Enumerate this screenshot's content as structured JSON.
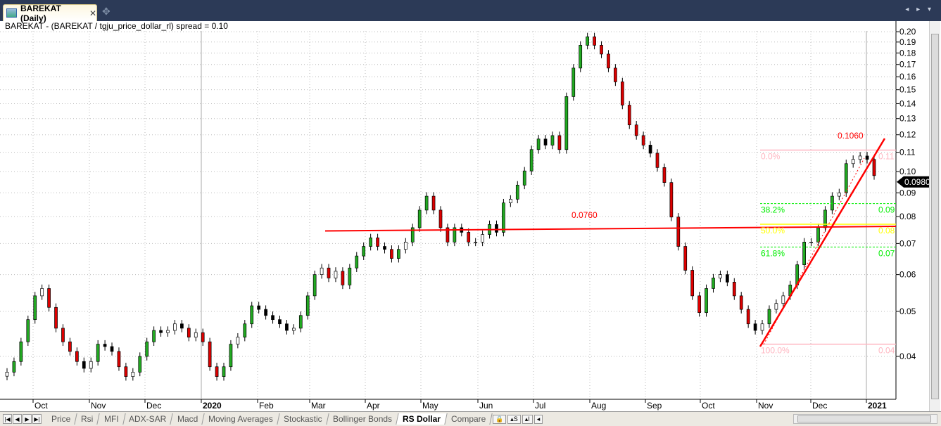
{
  "window": {
    "tab_title": "BAREKAT (Daily)",
    "close_icon": "close-icon",
    "new_tab_icon": "plus-icon"
  },
  "chart_subtitle": "BAREKAT - (BAREKAT / tgju_price_dollar_rl) spread = 0.10",
  "bottom_tabs": [
    "Price",
    "Rsi",
    "MFI",
    "ADX-SAR",
    "Macd",
    "Moving Averages",
    "Stockastic",
    "Bollinger Bonds",
    "RS Dollar",
    "Compare"
  ],
  "active_tab": "RS Dollar",
  "bottom_icons": {
    "lock": "🔒",
    "s": "▴S",
    "i": "▴I",
    "left": "◂",
    "right": "▸"
  },
  "colors": {
    "up": "#22aa22",
    "down": "#dd0000",
    "line": "#ff0000",
    "fib0": "#ffb6c1",
    "fib382": "#00ee00",
    "fib50": "#ffff00",
    "fib618": "#00ee00"
  },
  "chart_data": {
    "type": "candlestick",
    "title": "BAREKAT - (BAREKAT / tgju_price_dollar_rl) spread = 0.10",
    "scale": "log",
    "ylim": [
      0.0355,
      0.208
    ],
    "y_ticks": [
      "0.04",
      "0.05",
      "0.06",
      "0.07",
      "0.08",
      "0.09",
      "0.10",
      "0.11",
      "0.12",
      "0.13",
      "0.14",
      "0.15",
      "0.16",
      "0.17",
      "0.18",
      "0.19",
      "0.20"
    ],
    "x_ticks": [
      "Oct",
      "Nov",
      "Dec",
      "2020",
      "Feb",
      "Mar",
      "Apr",
      "May",
      "Jun",
      "Jul",
      "Aug",
      "Sep",
      "Oct",
      "Nov",
      "Dec",
      "2021"
    ],
    "last_price": "0.09801",
    "closes": [
      0.037,
      0.039,
      0.043,
      0.048,
      0.054,
      0.056,
      0.051,
      0.046,
      0.043,
      0.041,
      0.039,
      0.0377,
      0.039,
      0.0425,
      0.042,
      0.041,
      0.038,
      0.0362,
      0.037,
      0.04,
      0.043,
      0.0455,
      0.045,
      0.0455,
      0.047,
      0.046,
      0.044,
      0.045,
      0.043,
      0.038,
      0.0362,
      0.038,
      0.0425,
      0.044,
      0.047,
      0.0514,
      0.0505,
      0.049,
      0.048,
      0.047,
      0.0455,
      0.046,
      0.049,
      0.054,
      0.06,
      0.062,
      0.059,
      0.061,
      0.057,
      0.062,
      0.0658,
      0.069,
      0.072,
      0.069,
      0.068,
      0.065,
      0.068,
      0.0705,
      0.0757,
      0.0826,
      0.0885,
      0.0826,
      0.0757,
      0.0705,
      0.0757,
      0.074,
      0.0705,
      0.0705,
      0.0732,
      0.0769,
      0.074,
      0.0856,
      0.0872,
      0.0935,
      0.1003,
      0.1115,
      0.1175,
      0.114,
      0.1195,
      0.1115,
      0.145,
      0.167,
      0.187,
      0.195,
      0.187,
      0.179,
      0.167,
      0.156,
      0.139,
      0.126,
      0.1195,
      0.114,
      0.1095,
      0.102,
      0.0947,
      0.0798,
      0.069,
      0.0613,
      0.054,
      0.0497,
      0.056,
      0.059,
      0.06,
      0.0578,
      0.054,
      0.0505,
      0.047,
      0.0455,
      0.047,
      0.0505,
      0.052,
      0.054,
      0.057,
      0.063,
      0.0705,
      0.0705,
      0.0757,
      0.0826,
      0.0885,
      0.09,
      0.104,
      0.1062,
      0.108,
      0.1062,
      0.098
    ],
    "annotations": {
      "horizontal_line": {
        "label": "0.0760",
        "start": 0.0745,
        "end": 0.0762
      },
      "peak_label": "0.1060",
      "fibonacci": [
        {
          "level": "0.0%",
          "value": "0.11",
          "price": 0.1112
        },
        {
          "level": "38.2%",
          "value": "0.09",
          "price": 0.0853
        },
        {
          "level": "50.0%",
          "value": "0.08",
          "price": 0.077
        },
        {
          "level": "61.8%",
          "value": "0.07",
          "price": 0.0688
        },
        {
          "level": "100.0%",
          "value": "0.04",
          "price": 0.0425
        }
      ]
    }
  }
}
